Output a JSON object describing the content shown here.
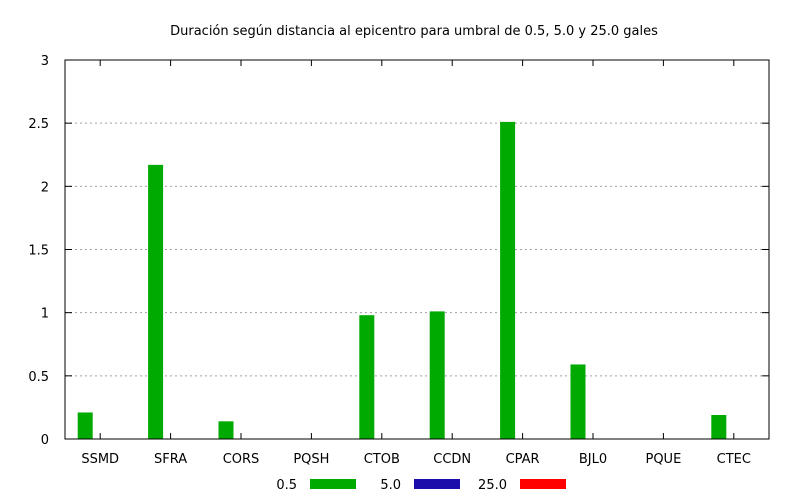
{
  "chart_data": {
    "type": "bar",
    "title": "Duración según distancia al epicentro para umbral de 0.5, 5.0 y 25.0 gales",
    "categories": [
      "SSMD",
      "SFRA",
      "CORS",
      "PQSH",
      "CTOB",
      "CCDN",
      "CPAR",
      "BJL0",
      "PQUE",
      "CTEC"
    ],
    "series": [
      {
        "name": "0.5",
        "color": "#00aa00",
        "values": [
          0.21,
          2.17,
          0.14,
          0,
          0.98,
          1.01,
          2.51,
          0.59,
          0,
          0.19
        ]
      },
      {
        "name": "5.0",
        "color": "#1a0dab",
        "values": [
          0,
          0,
          0,
          0,
          0,
          0,
          0,
          0,
          0,
          0
        ]
      },
      {
        "name": "25.0",
        "color": "#ff0000",
        "values": [
          0,
          0,
          0,
          0,
          0,
          0,
          0,
          0,
          0,
          0
        ]
      }
    ],
    "ylim": [
      0,
      3
    ],
    "yticks": [
      "0",
      "0.5",
      "1",
      "1.5",
      "2",
      "2.5",
      "3"
    ],
    "ytick_values": [
      0,
      0.5,
      1,
      1.5,
      2,
      2.5,
      3
    ],
    "grid": true,
    "legend_position": "bottom"
  }
}
